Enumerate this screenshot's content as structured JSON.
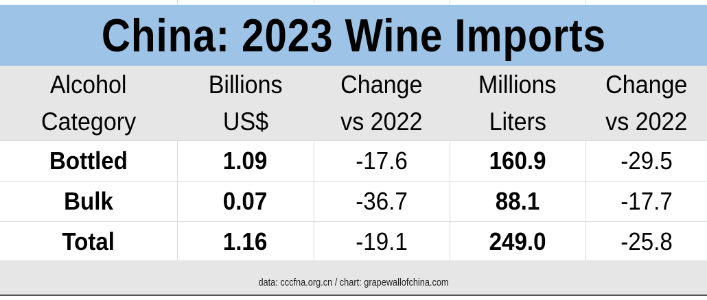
{
  "chart_data": {
    "type": "table",
    "title": "China: 2023 Wine Imports",
    "columns": [
      [
        "Alcohol",
        "Category"
      ],
      [
        "Billions",
        "US$"
      ],
      [
        "Change",
        "vs 2022"
      ],
      [
        "Millions",
        "Liters"
      ],
      [
        "Change",
        "vs 2022"
      ]
    ],
    "rows": [
      [
        "Bottled",
        "1.09",
        "-17.6",
        "160.9",
        "-29.5"
      ],
      [
        "Bulk",
        "0.07",
        "-36.7",
        "88.1",
        "-17.7"
      ],
      [
        "Total",
        "1.16",
        "-19.1",
        "249.0",
        "-25.8"
      ]
    ],
    "source": "data: cccfna.org.cn / chart: grapewallofchina.com"
  },
  "colors": {
    "title_bg": "#9dc3e6",
    "header_bg": "#e7e6e6"
  }
}
